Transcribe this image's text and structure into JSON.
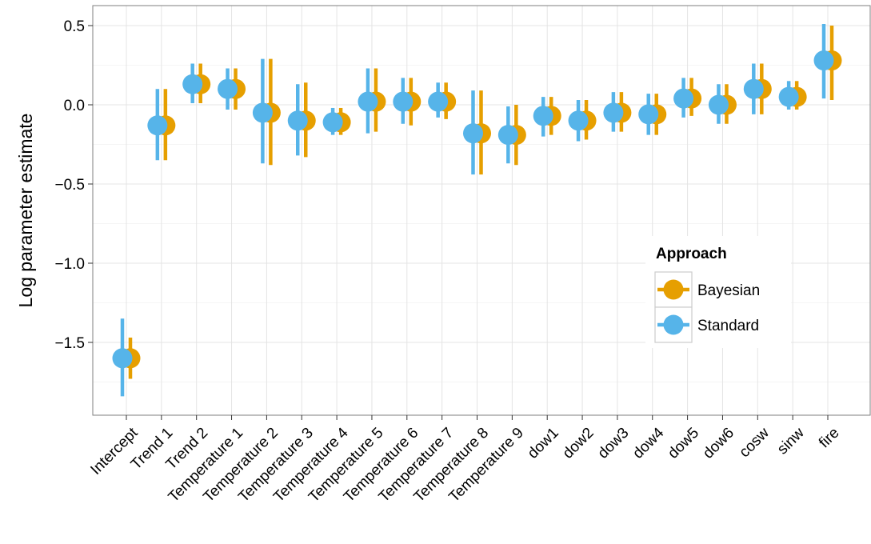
{
  "chart_data": {
    "type": "scatter",
    "subtype": "point-range (dodged)",
    "ylabel": "Log parameter estimate",
    "xlabel": "",
    "title": "",
    "ylim": [
      -1.95,
      0.63
    ],
    "yticks": [
      0.5,
      0.0,
      -0.5,
      -1.0,
      -1.5
    ],
    "ytick_labels": [
      "0.5",
      "0.0",
      "−0.5",
      "−1.0",
      "−1.5"
    ],
    "grid": true,
    "categories": [
      "Intercept",
      "Trend 1",
      "Trend 2",
      "Temperature 1",
      "Temperature 2",
      "Temperature 3",
      "Temperature 4",
      "Temperature 5",
      "Temperature 6",
      "Temperature 7",
      "Temperature 8",
      "Temperature 9",
      "dow1",
      "dow2",
      "dow3",
      "dow4",
      "dow5",
      "dow6",
      "cosw",
      "sinw",
      "fire"
    ],
    "series": [
      {
        "name": "Bayesian",
        "color": "#E69F00",
        "values": [
          -1.6,
          -0.13,
          0.13,
          0.1,
          -0.05,
          -0.1,
          -0.11,
          0.02,
          0.02,
          0.02,
          -0.18,
          -0.19,
          -0.07,
          -0.1,
          -0.05,
          -0.06,
          0.04,
          0.0,
          0.1,
          0.05,
          0.28
        ],
        "lower": [
          -1.73,
          -0.35,
          0.01,
          -0.03,
          -0.38,
          -0.33,
          -0.19,
          -0.17,
          -0.13,
          -0.09,
          -0.44,
          -0.38,
          -0.19,
          -0.22,
          -0.17,
          -0.19,
          -0.07,
          -0.12,
          -0.06,
          -0.03,
          0.03
        ],
        "upper": [
          -1.47,
          0.1,
          0.26,
          0.23,
          0.29,
          0.14,
          -0.02,
          0.23,
          0.17,
          0.14,
          0.09,
          0.0,
          0.05,
          0.03,
          0.08,
          0.07,
          0.17,
          0.13,
          0.26,
          0.15,
          0.5
        ]
      },
      {
        "name": "Standard",
        "color": "#56B4E9",
        "values": [
          -1.6,
          -0.13,
          0.13,
          0.1,
          -0.05,
          -0.1,
          -0.11,
          0.02,
          0.02,
          0.02,
          -0.18,
          -0.19,
          -0.07,
          -0.1,
          -0.05,
          -0.06,
          0.04,
          0.0,
          0.1,
          0.05,
          0.28
        ],
        "lower": [
          -1.84,
          -0.35,
          0.01,
          -0.03,
          -0.37,
          -0.32,
          -0.19,
          -0.18,
          -0.12,
          -0.08,
          -0.44,
          -0.37,
          -0.2,
          -0.23,
          -0.17,
          -0.19,
          -0.08,
          -0.12,
          -0.06,
          -0.03,
          0.04
        ],
        "upper": [
          -1.35,
          0.1,
          0.26,
          0.23,
          0.29,
          0.13,
          -0.02,
          0.23,
          0.17,
          0.14,
          0.09,
          -0.01,
          0.05,
          0.03,
          0.08,
          0.07,
          0.17,
          0.13,
          0.26,
          0.15,
          0.51
        ]
      }
    ],
    "legend": {
      "title": "Approach",
      "position": "bottom-right inside",
      "entries": [
        "Bayesian",
        "Standard"
      ]
    }
  }
}
